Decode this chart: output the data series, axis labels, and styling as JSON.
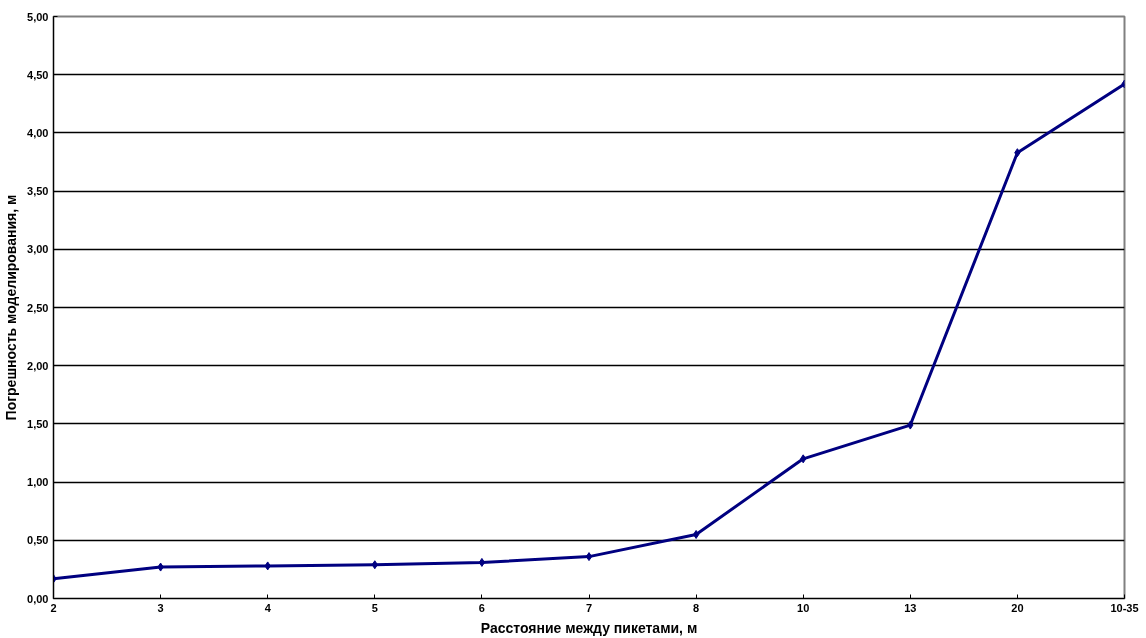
{
  "chart_data": {
    "type": "line",
    "xlabel": "Расстояние между пикетами, м",
    "ylabel": "Погрешность моделирования, м",
    "categories": [
      "2",
      "3",
      "4",
      "5",
      "6",
      "7",
      "8",
      "10",
      "13",
      "20",
      "10-35"
    ],
    "series": [
      {
        "color": "#000080",
        "values": [
          0.17,
          0.27,
          0.28,
          0.29,
          0.31,
          0.36,
          0.55,
          1.2,
          1.49,
          3.83,
          4.42
        ]
      }
    ],
    "ylim": [
      0,
      5
    ],
    "yticks": [
      {
        "value": 0,
        "label": "0,00"
      },
      {
        "value": 0.5,
        "label": "0,50"
      },
      {
        "value": 1,
        "label": "1,00"
      },
      {
        "value": 1.5,
        "label": "1,50"
      },
      {
        "value": 2,
        "label": "2,00"
      },
      {
        "value": 2.5,
        "label": "2,50"
      },
      {
        "value": 3,
        "label": "3,00"
      },
      {
        "value": 3.5,
        "label": "3,50"
      },
      {
        "value": 4,
        "label": "4,00"
      },
      {
        "value": 4.5,
        "label": "4,50"
      },
      {
        "value": 5,
        "label": "5,00"
      }
    ],
    "grid": "y",
    "marker": "diamond",
    "line_style": "solid"
  }
}
